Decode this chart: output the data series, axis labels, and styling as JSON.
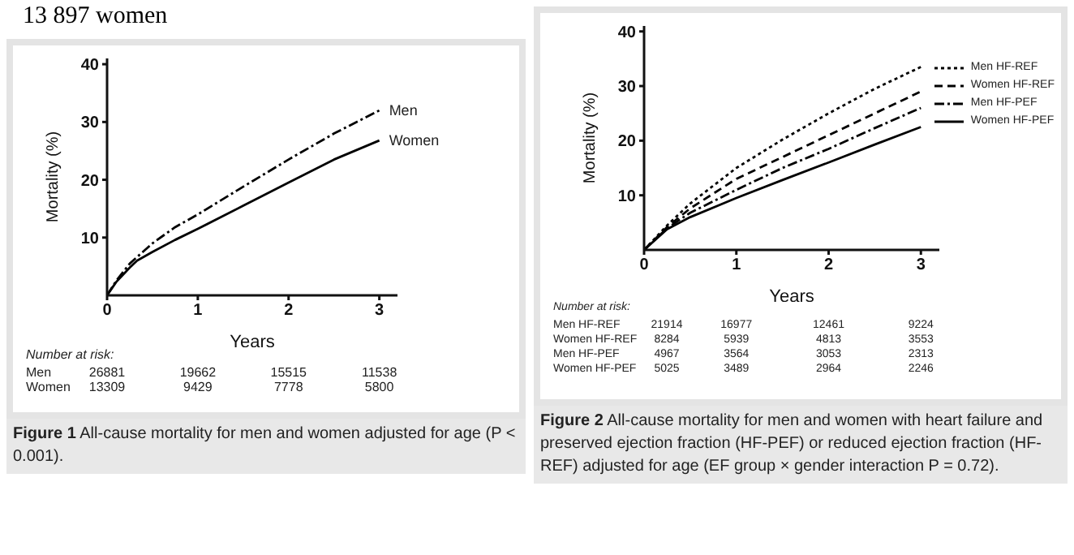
{
  "chart_data": [
    {
      "type": "line",
      "title": "Figure 1  All-cause mortality for men and women adjusted for age (P < 0.001).",
      "xlabel": "Years",
      "ylabel": "Mortality (%)",
      "xlim": [
        0,
        3.2
      ],
      "xticks": [
        0,
        1,
        2,
        3
      ],
      "ylim": [
        0,
        41
      ],
      "yticks": [
        10,
        20,
        30,
        40
      ],
      "legend": false,
      "marker": "none",
      "series": [
        {
          "name": "Men",
          "color": "#000000",
          "line_style": "dashdot",
          "x": [
            0,
            0.1,
            0.25,
            0.5,
            0.75,
            1,
            1.5,
            2,
            2.5,
            3
          ],
          "values": [
            0,
            2.5,
            5.5,
            9,
            11.8,
            14,
            18.8,
            23.5,
            28,
            32
          ]
        },
        {
          "name": "Women",
          "color": "#000000",
          "line_style": "solid",
          "x": [
            0,
            0.1,
            0.25,
            0.33,
            0.5,
            0.75,
            1,
            1.5,
            2,
            2.5,
            3
          ],
          "values": [
            0,
            2.3,
            4.8,
            6,
            7.5,
            9.6,
            11.5,
            15.5,
            19.5,
            23.5,
            26.8
          ]
        }
      ],
      "annotations": [
        "13 897 women",
        "Number at risk:",
        "Men",
        "26881",
        "19662",
        "15515",
        "11538",
        "Women",
        "13309",
        "9429",
        "7778",
        "5800"
      ]
    },
    {
      "type": "line",
      "title": "Figure 2  All-cause mortality for men and women with heart failure and preserved ejection fraction (HF-PEF) or reduced ejection fraction (HF-REF) adjusted for age (EF group × gender interaction P = 0.72).",
      "xlabel": "Years",
      "ylabel": "Mortality (%)",
      "xlim": [
        0,
        3.2
      ],
      "xticks": [
        0,
        1,
        2,
        3
      ],
      "ylim": [
        0,
        41
      ],
      "yticks": [
        10,
        20,
        30,
        40
      ],
      "legend": "top right",
      "marker": "none",
      "series": [
        {
          "name": "Men HF-REF",
          "color": "#000000",
          "line_style": "dotted",
          "x": [
            0,
            0.25,
            0.5,
            1,
            1.5,
            2,
            2.5,
            3
          ],
          "values": [
            0,
            4.5,
            8.5,
            15,
            20.2,
            25,
            29.5,
            33.5
          ]
        },
        {
          "name": "Women HF-REF",
          "color": "#000000",
          "line_style": "dashed",
          "x": [
            0,
            0.25,
            0.5,
            1,
            1.5,
            2,
            2.5,
            3
          ],
          "values": [
            0,
            4.2,
            7.6,
            13,
            17,
            21,
            25,
            29
          ]
        },
        {
          "name": "Men HF-PEF",
          "color": "#000000",
          "line_style": "dashdot",
          "x": [
            0,
            0.25,
            0.5,
            1,
            1.5,
            2,
            2.5,
            3
          ],
          "values": [
            0,
            4,
            6.8,
            11,
            15,
            18.5,
            22.3,
            26
          ]
        },
        {
          "name": "Women HF-PEF",
          "color": "#000000",
          "line_style": "solid",
          "x": [
            0,
            0.25,
            0.5,
            1,
            1.5,
            2,
            2.5,
            3
          ],
          "values": [
            0,
            3.8,
            6,
            9.5,
            12.8,
            16,
            19.3,
            22.5
          ]
        }
      ],
      "annotations": [
        "Number at risk:",
        "Men HF-REF",
        "21914",
        "16977",
        "12461",
        "9224",
        "Women HF-REF",
        "8284",
        "5939",
        "4813",
        "3553",
        "Men HF-PEF",
        "4967",
        "3564",
        "3053",
        "2313",
        "Women HF-PEF",
        "5025",
        "3489",
        "2964",
        "2246"
      ]
    }
  ]
}
